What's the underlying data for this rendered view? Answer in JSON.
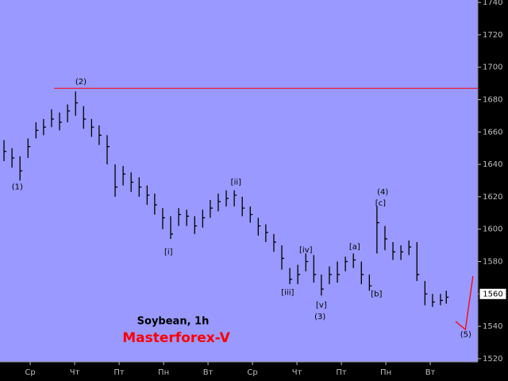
{
  "chart_data": {
    "type": "ohlc",
    "title": "Soybean, 1h",
    "subtitle": "Masterforex-V",
    "xticks": [
      {
        "value": 0,
        "label": "Ср"
      },
      {
        "value": 1,
        "label": "Чт"
      },
      {
        "value": 2,
        "label": "Пт"
      },
      {
        "value": 3,
        "label": "Пн"
      },
      {
        "value": 4,
        "label": "Вт"
      },
      {
        "value": 5,
        "label": "Ср"
      },
      {
        "value": 6,
        "label": "Чт"
      },
      {
        "value": 7,
        "label": "Пт"
      },
      {
        "value": 8,
        "label": "Пн"
      },
      {
        "value": 9,
        "label": "Вт"
      }
    ],
    "xlim": [
      -0.68,
      10.07
    ],
    "ylim": [
      1518,
      1741.5
    ],
    "yticks": [
      1520,
      1540,
      1560,
      1580,
      1600,
      1620,
      1640,
      1660,
      1680,
      1700,
      1720,
      1740
    ],
    "background": "#9999ff",
    "bar_color": "#000000",
    "x": [
      -0.59,
      -0.41,
      -0.23,
      -0.05,
      0.13,
      0.3,
      0.48,
      0.66,
      0.84,
      1.02,
      1.2,
      1.38,
      1.55,
      1.73,
      1.91,
      2.09,
      2.27,
      2.45,
      2.63,
      2.8,
      2.98,
      3.16,
      3.34,
      3.52,
      3.7,
      3.88,
      4.05,
      4.23,
      4.41,
      4.59,
      4.77,
      4.95,
      5.13,
      5.3,
      5.48,
      5.66,
      5.84,
      6.02,
      6.2,
      6.38,
      6.55,
      6.73,
      6.91,
      7.09,
      7.27,
      7.45,
      7.63,
      7.8,
      7.98,
      8.16,
      8.34,
      8.52,
      8.7,
      8.88,
      9.05,
      9.23,
      9.36
    ],
    "high": [
      1655,
      1650,
      1645,
      1656,
      1666,
      1668,
      1674,
      1672,
      1677,
      1685,
      1676,
      1668,
      1664,
      1658,
      1640,
      1639,
      1635,
      1632,
      1627,
      1622,
      1613,
      1608,
      1613,
      1612,
      1608,
      1612,
      1618,
      1622,
      1624,
      1624,
      1620,
      1614,
      1607,
      1603,
      1597,
      1590,
      1576,
      1578,
      1585,
      1584,
      1572,
      1577,
      1580,
      1583,
      1585,
      1580,
      1572,
      1614,
      1602,
      1592,
      1590,
      1593,
      1592,
      1568,
      1560,
      1560,
      1562
    ],
    "low": [
      1642,
      1638,
      1630,
      1644,
      1656,
      1658,
      1663,
      1661,
      1666,
      1670,
      1662,
      1657,
      1652,
      1640,
      1620,
      1627,
      1623,
      1620,
      1615,
      1609,
      1600,
      1594,
      1602,
      1602,
      1597,
      1601,
      1607,
      1611,
      1614,
      1614,
      1608,
      1604,
      1596,
      1592,
      1586,
      1575,
      1566,
      1566,
      1574,
      1567,
      1559,
      1566,
      1567,
      1574,
      1576,
      1566,
      1562,
      1585,
      1587,
      1581,
      1581,
      1584,
      1568,
      1553,
      1552,
      1553,
      1554
    ],
    "close": [
      1648,
      1644,
      1636,
      1651,
      1661,
      1663,
      1668,
      1666,
      1673,
      1678,
      1668,
      1663,
      1658,
      1651,
      1626,
      1634,
      1629,
      1626,
      1621,
      1615,
      1607,
      1597,
      1609,
      1608,
      1602,
      1607,
      1613,
      1617,
      1619,
      1621,
      1613,
      1609,
      1602,
      1598,
      1592,
      1582,
      1569,
      1572,
      1580,
      1572,
      1563,
      1572,
      1572,
      1580,
      1581,
      1572,
      1565,
      1604,
      1594,
      1586,
      1586,
      1589,
      1572,
      1560,
      1555,
      1556,
      1558
    ],
    "hline": {
      "value": 1687,
      "start": 0.54,
      "color": "#ff0000"
    },
    "projection": {
      "x": [
        9.57,
        9.79,
        9.96
      ],
      "values": [
        1543,
        1538,
        1571
      ],
      "color": "#ff0000"
    },
    "last_price": 1560,
    "annotations": [
      {
        "text": "(1)",
        "x": -0.29,
        "y": 1626
      },
      {
        "text": "(2)",
        "x": 1.14,
        "y": 1691
      },
      {
        "text": "[i]",
        "x": 3.11,
        "y": 1586
      },
      {
        "text": "[ii]",
        "x": 4.63,
        "y": 1629
      },
      {
        "text": "[iii]",
        "x": 5.79,
        "y": 1561
      },
      {
        "text": "[iv]",
        "x": 6.2,
        "y": 1587
      },
      {
        "text": "[v]",
        "x": 6.55,
        "y": 1553
      },
      {
        "text": "(3)",
        "x": 6.52,
        "y": 1546
      },
      {
        "text": "[a]",
        "x": 7.3,
        "y": 1589
      },
      {
        "text": "[b]",
        "x": 7.79,
        "y": 1560
      },
      {
        "text": "[c]",
        "x": 7.88,
        "y": 1616
      },
      {
        "text": "(4)",
        "x": 7.93,
        "y": 1623
      },
      {
        "text": "(5)",
        "x": 9.8,
        "y": 1535
      }
    ]
  }
}
